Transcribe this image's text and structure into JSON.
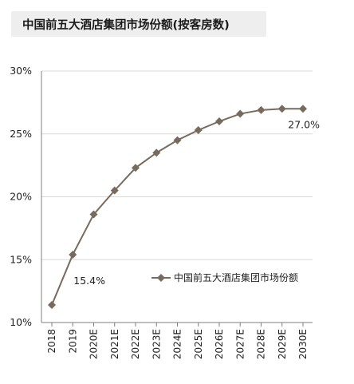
{
  "chart_data": {
    "type": "line",
    "title": "中国前五大酒店集团市场份额(按客房数)",
    "categories": [
      "2018",
      "2019",
      "2020E",
      "2021E",
      "2022E",
      "2023E",
      "2024E",
      "2025E",
      "2026E",
      "2027E",
      "2028E",
      "2029E",
      "2030E"
    ],
    "series": [
      {
        "name": "中国前五大酒店集团市场份额",
        "values": [
          11.4,
          15.4,
          18.6,
          20.5,
          22.3,
          23.5,
          24.5,
          25.3,
          26.0,
          26.6,
          26.9,
          27.0,
          27.0
        ],
        "color": "#776b5d"
      }
    ],
    "ylim": [
      10,
      30
    ],
    "yticks": [
      "10%",
      "15%",
      "20%",
      "25%",
      "30%"
    ],
    "ytick_values": [
      10,
      15,
      20,
      25,
      30
    ],
    "data_labels": [
      {
        "index": 1,
        "text": "15.4%"
      },
      {
        "index": 12,
        "text": "27.0%"
      }
    ],
    "xlabel": "",
    "ylabel": "",
    "grid": "horizontal",
    "legend": "right"
  }
}
